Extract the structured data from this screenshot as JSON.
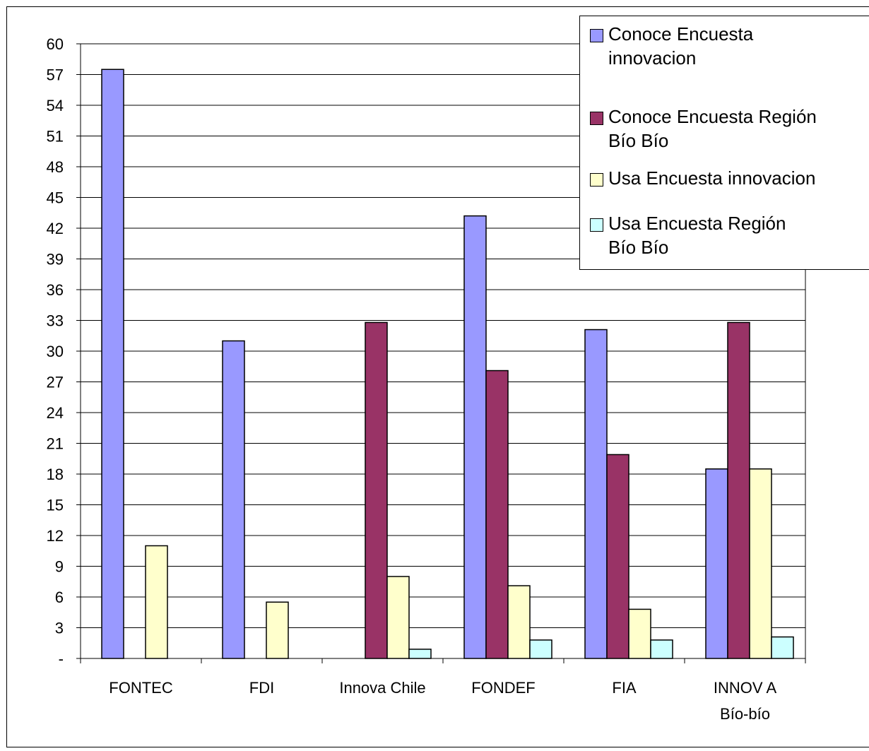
{
  "chart_data": {
    "type": "bar",
    "categories": [
      "FONTEC",
      "FDI",
      "Innova Chile",
      "FONDEF",
      "FIA",
      "INNOVA Bío-bío"
    ],
    "category_lines": [
      [
        "FONTEC"
      ],
      [
        "FDI"
      ],
      [
        "Innova Chile"
      ],
      [
        "FONDEF"
      ],
      [
        "FIA"
      ],
      [
        "INNOV A",
        "Bío-bío"
      ]
    ],
    "series": [
      {
        "name": "Conoce Encuesta innovacion",
        "name_lines": [
          "Conoce Encuesta",
          "innovacion"
        ],
        "color": "#9999FF",
        "values": [
          57.5,
          31.0,
          0,
          43.2,
          32.1,
          18.5
        ]
      },
      {
        "name": "Conoce Encuesta Región Bío Bío",
        "name_lines": [
          "Conoce Encuesta Región",
          "Bío Bío"
        ],
        "color": "#993366",
        "values": [
          0,
          0,
          32.8,
          28.1,
          19.9,
          32.8
        ]
      },
      {
        "name": "Usa Encuesta innovacion",
        "name_lines": [
          "Usa Encuesta innovacion"
        ],
        "color": "#FFFFCC",
        "values": [
          11.0,
          5.5,
          8.0,
          7.1,
          4.8,
          18.5
        ]
      },
      {
        "name": "Usa  Encuesta Región Bío Bío",
        "name_lines": [
          "Usa  Encuesta Región",
          "Bío Bío"
        ],
        "color": "#CCFFFF",
        "values": [
          0,
          0,
          0.9,
          1.8,
          1.8,
          2.1
        ]
      }
    ],
    "ylim": [
      0,
      60
    ],
    "yticks": [
      0,
      3,
      6,
      9,
      12,
      15,
      18,
      21,
      24,
      27,
      30,
      33,
      36,
      39,
      42,
      45,
      48,
      51,
      54,
      57,
      60
    ],
    "yticks_labels": [
      "-",
      "3",
      "6",
      "9",
      "12",
      "15",
      "18",
      "21",
      "24",
      "27",
      "30",
      "33",
      "36",
      "39",
      "42",
      "45",
      "48",
      "51",
      "54",
      "57",
      "60"
    ],
    "grid": true,
    "legend_position": "top-right",
    "title": "",
    "xlabel": "",
    "ylabel": ""
  }
}
